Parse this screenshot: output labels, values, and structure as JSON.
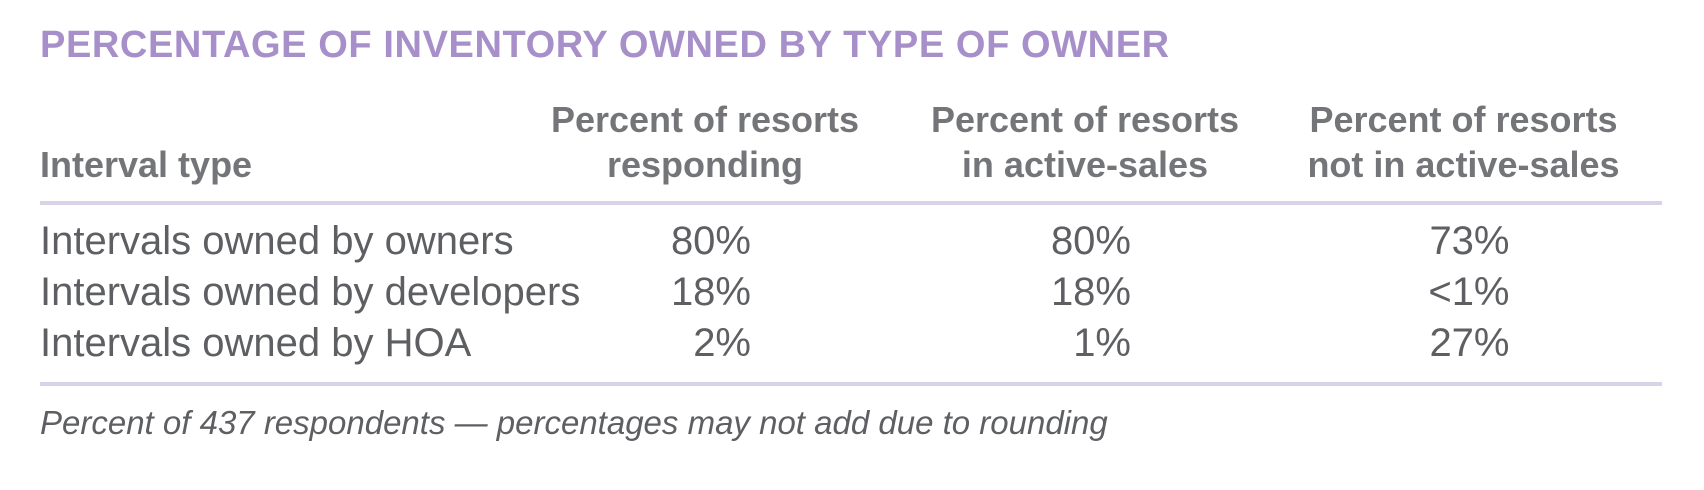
{
  "title": "PERCENTAGE OF INVENTORY OWNED BY TYPE OF OWNER",
  "colors": {
    "title": "#a78fc9",
    "header_text": "#747579",
    "body_text": "#5e5f63",
    "divider": "#d9d2e9",
    "background": "#ffffff"
  },
  "table": {
    "columns": [
      {
        "label": "Interval type"
      },
      {
        "lines": [
          "Percent of resorts",
          "responding"
        ]
      },
      {
        "lines": [
          "Percent of resorts",
          "in active-sales"
        ]
      },
      {
        "lines": [
          "Percent of resorts",
          "not in active-sales"
        ]
      }
    ],
    "rows": [
      {
        "label": "Intervals owned by owners",
        "values": [
          "80%",
          "80%",
          "73%"
        ]
      },
      {
        "label": "Intervals owned by developers",
        "values": [
          "18%",
          "18%",
          "<1%"
        ]
      },
      {
        "label": "Intervals owned by HOA",
        "values": [
          "2%",
          "1%",
          "27%"
        ]
      }
    ]
  },
  "footnote": "Percent of 437 respondents — percentages may not add due to rounding",
  "chart_data": {
    "type": "table",
    "title": "PERCENTAGE OF INVENTORY OWNED BY TYPE OF OWNER",
    "columns": [
      "Interval type",
      "Percent of resorts responding",
      "Percent of resorts in active-sales",
      "Percent of resorts not in active-sales"
    ],
    "rows": [
      [
        "Intervals owned by owners",
        "80%",
        "80%",
        "73%"
      ],
      [
        "Intervals owned by developers",
        "18%",
        "18%",
        "<1%"
      ],
      [
        "Intervals owned by HOA",
        "2%",
        "1%",
        "27%"
      ]
    ],
    "footnote": "Percent of 437 respondents — percentages may not add due to rounding"
  }
}
